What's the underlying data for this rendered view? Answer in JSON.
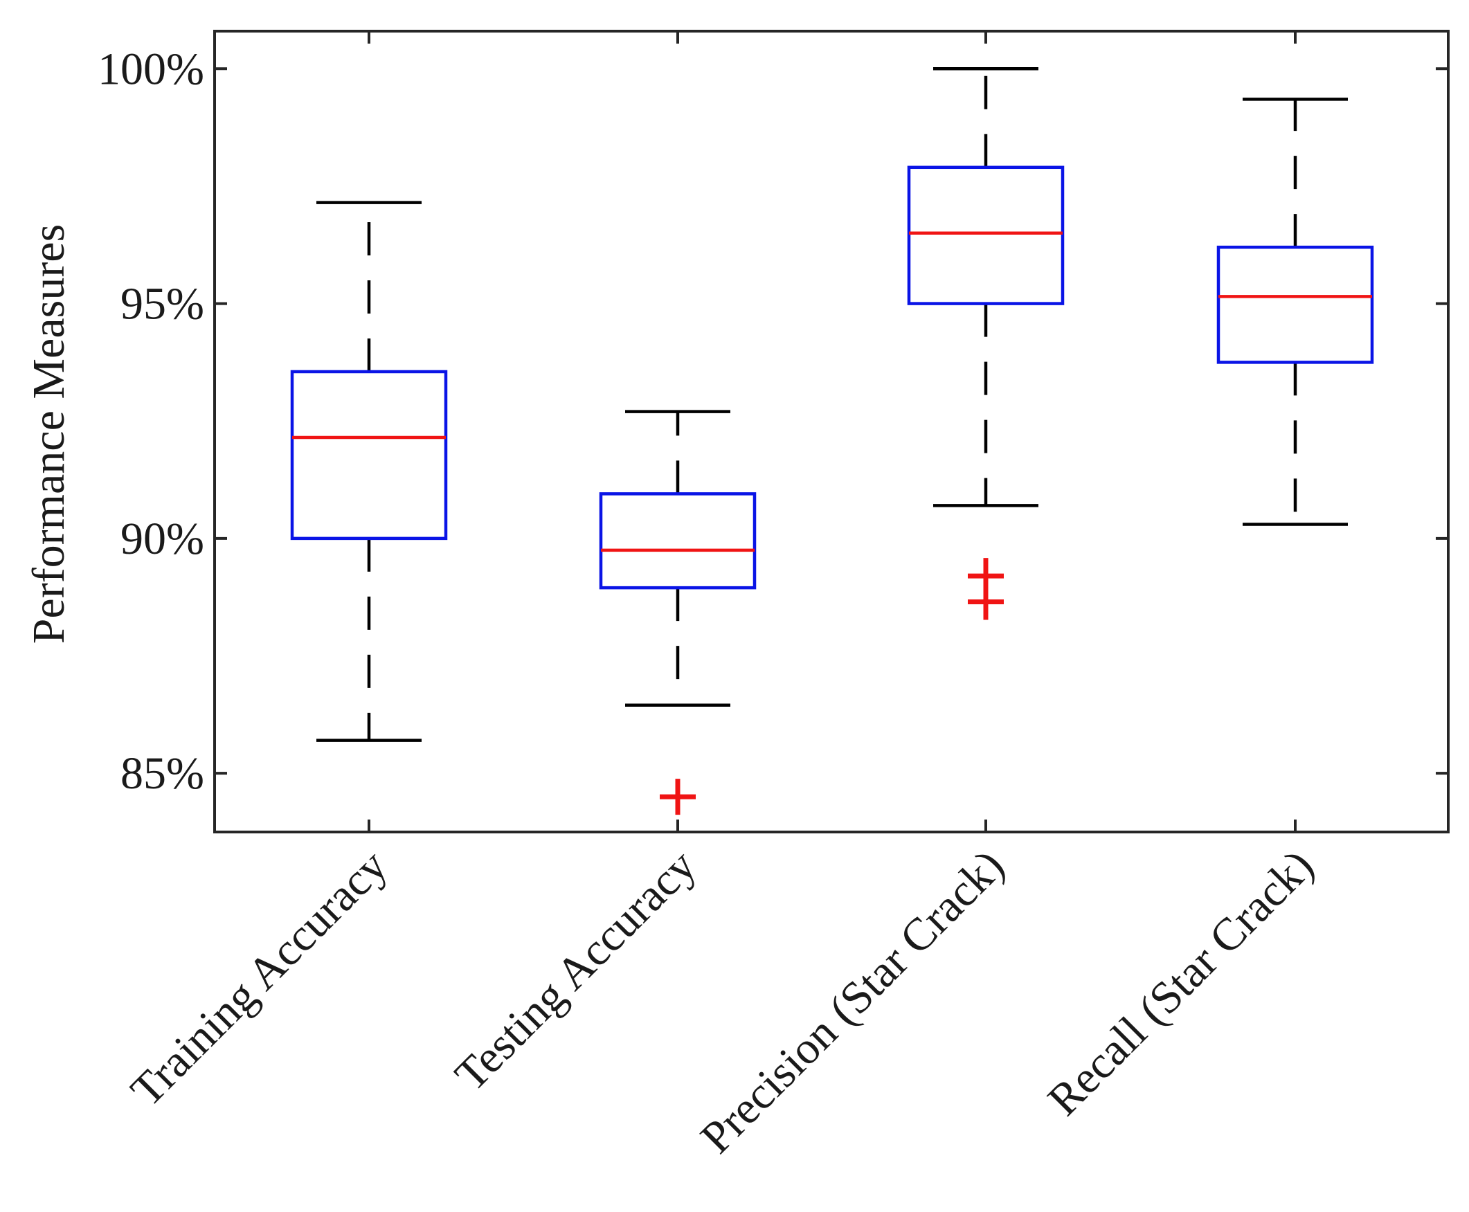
{
  "chart_data": {
    "type": "boxplot",
    "ylabel": "Performance Measures",
    "xlabel": "",
    "ylim": [
      83.75,
      100.8
    ],
    "yticks": [
      {
        "value": 85,
        "label": "85%"
      },
      {
        "value": 90,
        "label": "90%"
      },
      {
        "value": 95,
        "label": "95%"
      },
      {
        "value": 100,
        "label": "100%"
      }
    ],
    "categories": [
      "Training Accuracy",
      "Testing Accuracy",
      "Precision (Star Crack)",
      "Recall (Star Crack)"
    ],
    "boxes": [
      {
        "name": "Training Accuracy",
        "whisker_low": 85.7,
        "q1": 90.0,
        "median": 92.15,
        "q3": 93.55,
        "whisker_high": 97.15,
        "outliers": []
      },
      {
        "name": "Testing Accuracy",
        "whisker_low": 86.45,
        "q1": 88.95,
        "median": 89.75,
        "q3": 90.95,
        "whisker_high": 92.7,
        "outliers": [
          84.5
        ]
      },
      {
        "name": "Precision (Star Crack)",
        "whisker_low": 90.7,
        "q1": 95.0,
        "median": 96.5,
        "q3": 97.9,
        "whisker_high": 100.0,
        "outliers": [
          89.2,
          88.65
        ]
      },
      {
        "name": "Recall (Star Crack)",
        "whisker_low": 90.3,
        "q1": 93.75,
        "median": 95.15,
        "q3": 96.2,
        "whisker_high": 99.35,
        "outliers": []
      }
    ],
    "colors": {
      "box": "#0a14e6",
      "median": "#f01414",
      "whisker": "#000000",
      "outlier": "#f01414",
      "axis": "#262626"
    },
    "grid": false
  }
}
